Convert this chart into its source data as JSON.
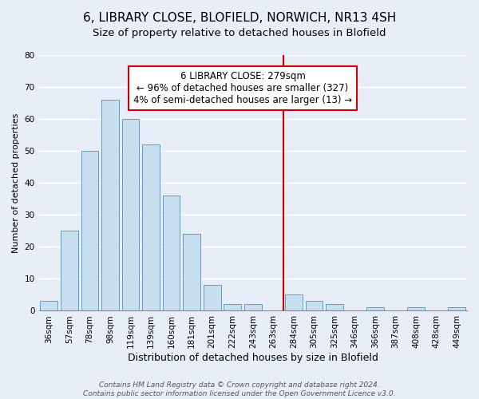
{
  "title": "6, LIBRARY CLOSE, BLOFIELD, NORWICH, NR13 4SH",
  "subtitle": "Size of property relative to detached houses in Blofield",
  "xlabel": "Distribution of detached houses by size in Blofield",
  "ylabel": "Number of detached properties",
  "bar_labels": [
    "36sqm",
    "57sqm",
    "78sqm",
    "98sqm",
    "119sqm",
    "139sqm",
    "160sqm",
    "181sqm",
    "201sqm",
    "222sqm",
    "243sqm",
    "263sqm",
    "284sqm",
    "305sqm",
    "325sqm",
    "346sqm",
    "366sqm",
    "387sqm",
    "408sqm",
    "428sqm",
    "449sqm"
  ],
  "bar_values": [
    3,
    25,
    50,
    66,
    60,
    52,
    36,
    24,
    8,
    2,
    2,
    0,
    5,
    3,
    2,
    0,
    1,
    0,
    1,
    0,
    1
  ],
  "bar_color": "#c8dff0",
  "bar_edge_color": "#5b9bd5",
  "vline_color": "#cc0000",
  "vline_index": 12,
  "ylim": [
    0,
    80
  ],
  "yticks": [
    0,
    10,
    20,
    30,
    40,
    50,
    60,
    70,
    80
  ],
  "annotation_title": "6 LIBRARY CLOSE: 279sqm",
  "annotation_line1": "← 96% of detached houses are smaller (327)",
  "annotation_line2": "4% of semi-detached houses are larger (13) →",
  "annotation_box_edge": "#cc0000",
  "footer_line1": "Contains HM Land Registry data © Crown copyright and database right 2024.",
  "footer_line2": "Contains public sector information licensed under the Open Government Licence v3.0.",
  "background_color": "#e8eef8",
  "grid_color": "#ffffff",
  "title_fontsize": 11,
  "subtitle_fontsize": 9.5,
  "xlabel_fontsize": 9,
  "ylabel_fontsize": 8,
  "tick_fontsize": 7.5,
  "annotation_fontsize": 8.5,
  "footer_fontsize": 6.5
}
